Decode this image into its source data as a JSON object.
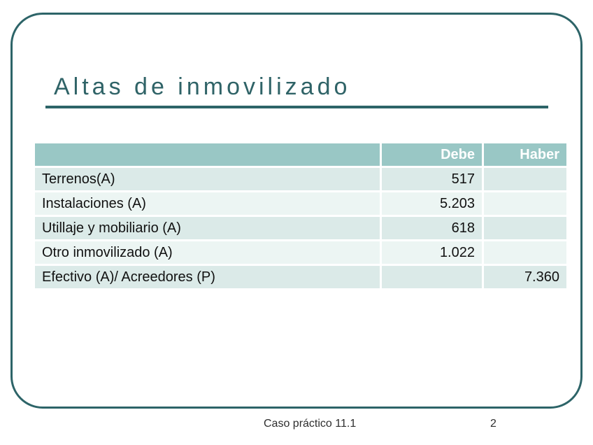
{
  "slide": {
    "title": "Altas de inmovilizado",
    "footer": {
      "caption": "Caso práctico 11.1",
      "page_number": "2"
    }
  },
  "table": {
    "columns": {
      "blank": "",
      "debe": "Debe",
      "haber": "Haber"
    },
    "rows": [
      {
        "label": "Terrenos(A)",
        "debe": "517",
        "haber": ""
      },
      {
        "label": "Instalaciones (A)",
        "debe": "5.203",
        "haber": ""
      },
      {
        "label": "Utillaje y mobiliario (A)",
        "debe": "618",
        "haber": ""
      },
      {
        "label": "Otro inmovilizado (A)",
        "debe": "1.022",
        "haber": ""
      },
      {
        "label": "Efectivo (A)/ Acreedores (P)",
        "debe": "",
        "haber": "7.360"
      }
    ]
  },
  "colors": {
    "accent_dark_teal": "#2d6468",
    "table_header_bg": "#99c7c5",
    "row_alt_dark": "#dbeae8",
    "row_alt_light": "#ecf5f3",
    "header_text": "#ffffff",
    "body_text": "#111111"
  }
}
